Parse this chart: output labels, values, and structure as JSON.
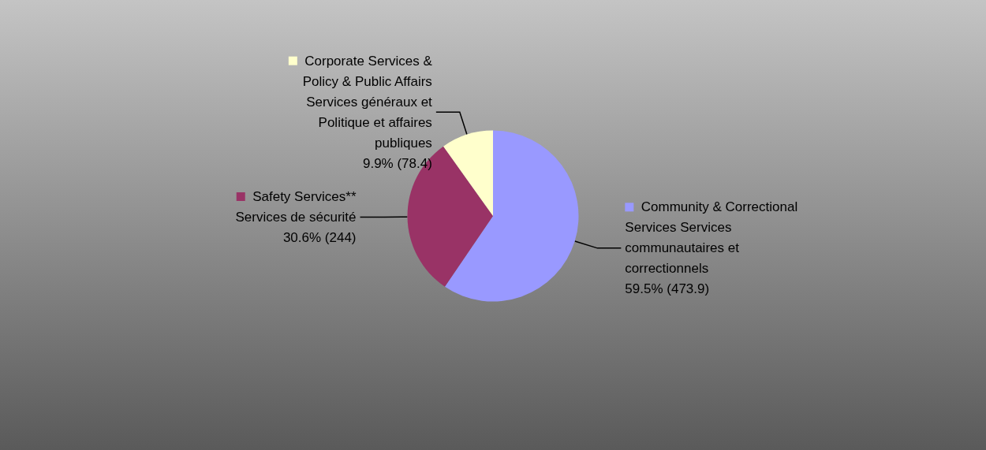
{
  "chart_data": {
    "type": "pie",
    "categories": [
      "Community & Correctional Services Services communautaires et correctionnels",
      "Safety Services** Services de sécurité",
      "Corporate Services & Policy & Public Affairs Services généraux et Politique et affaires publiques"
    ],
    "values": [
      473.9,
      244,
      78.4
    ],
    "value_labels": [
      "59.5% (473.9)",
      "30.6% (244)",
      "9.9% (78.4)"
    ],
    "colors": [
      "#9999ff",
      "#993366",
      "#ffffcc"
    ],
    "legend": "center"
  }
}
